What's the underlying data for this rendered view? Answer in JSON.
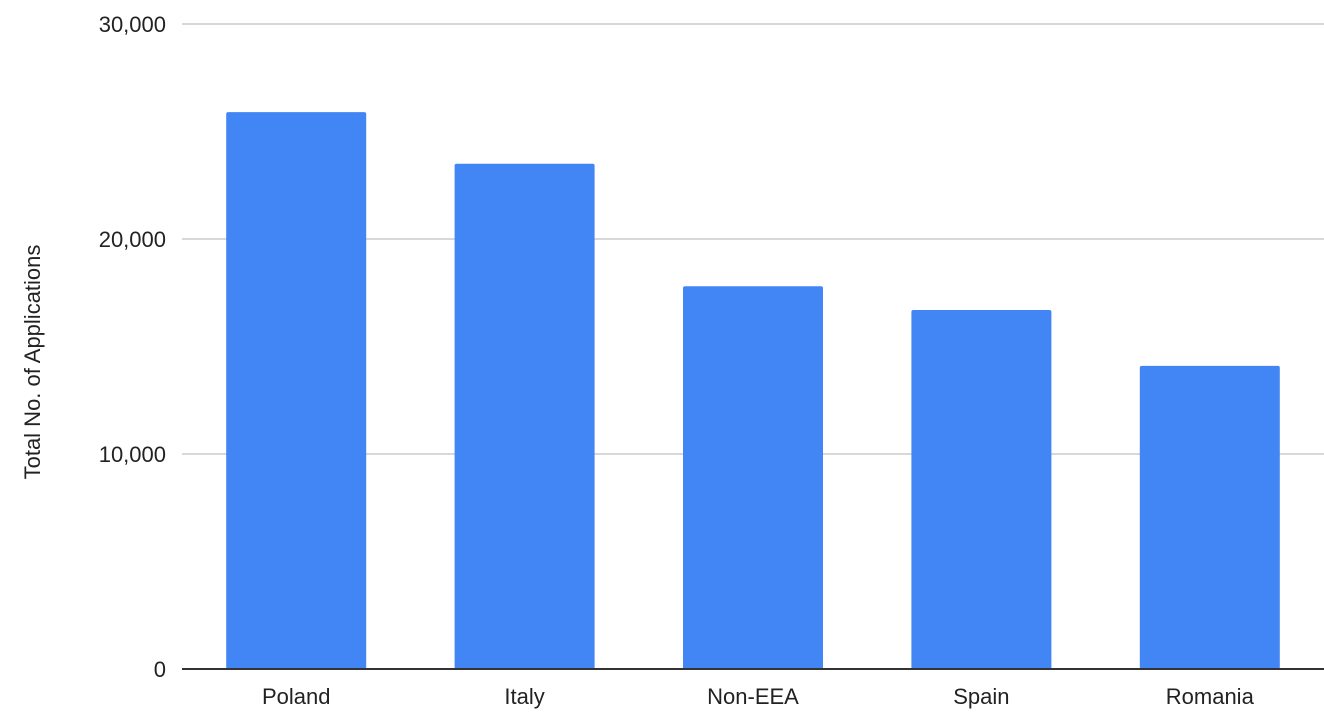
{
  "chart_data": {
    "type": "bar",
    "title": "",
    "xlabel": "",
    "ylabel": "Total No. of Applications",
    "categories": [
      "Poland",
      "Italy",
      "Non-EEA",
      "Spain",
      "Romania"
    ],
    "values": [
      25900,
      23500,
      17800,
      16700,
      14100
    ],
    "ylim": [
      0,
      30000
    ],
    "yticks": [
      {
        "value": 0,
        "label": "0"
      },
      {
        "value": 10000,
        "label": "10,000"
      },
      {
        "value": 20000,
        "label": "20,000"
      },
      {
        "value": 30000,
        "label": "30,000"
      }
    ],
    "grid": true,
    "legend": "none",
    "colors": {
      "bar": "#4285f4",
      "grid": "#cccccc",
      "axis": "#333333",
      "text": "#222222"
    }
  }
}
